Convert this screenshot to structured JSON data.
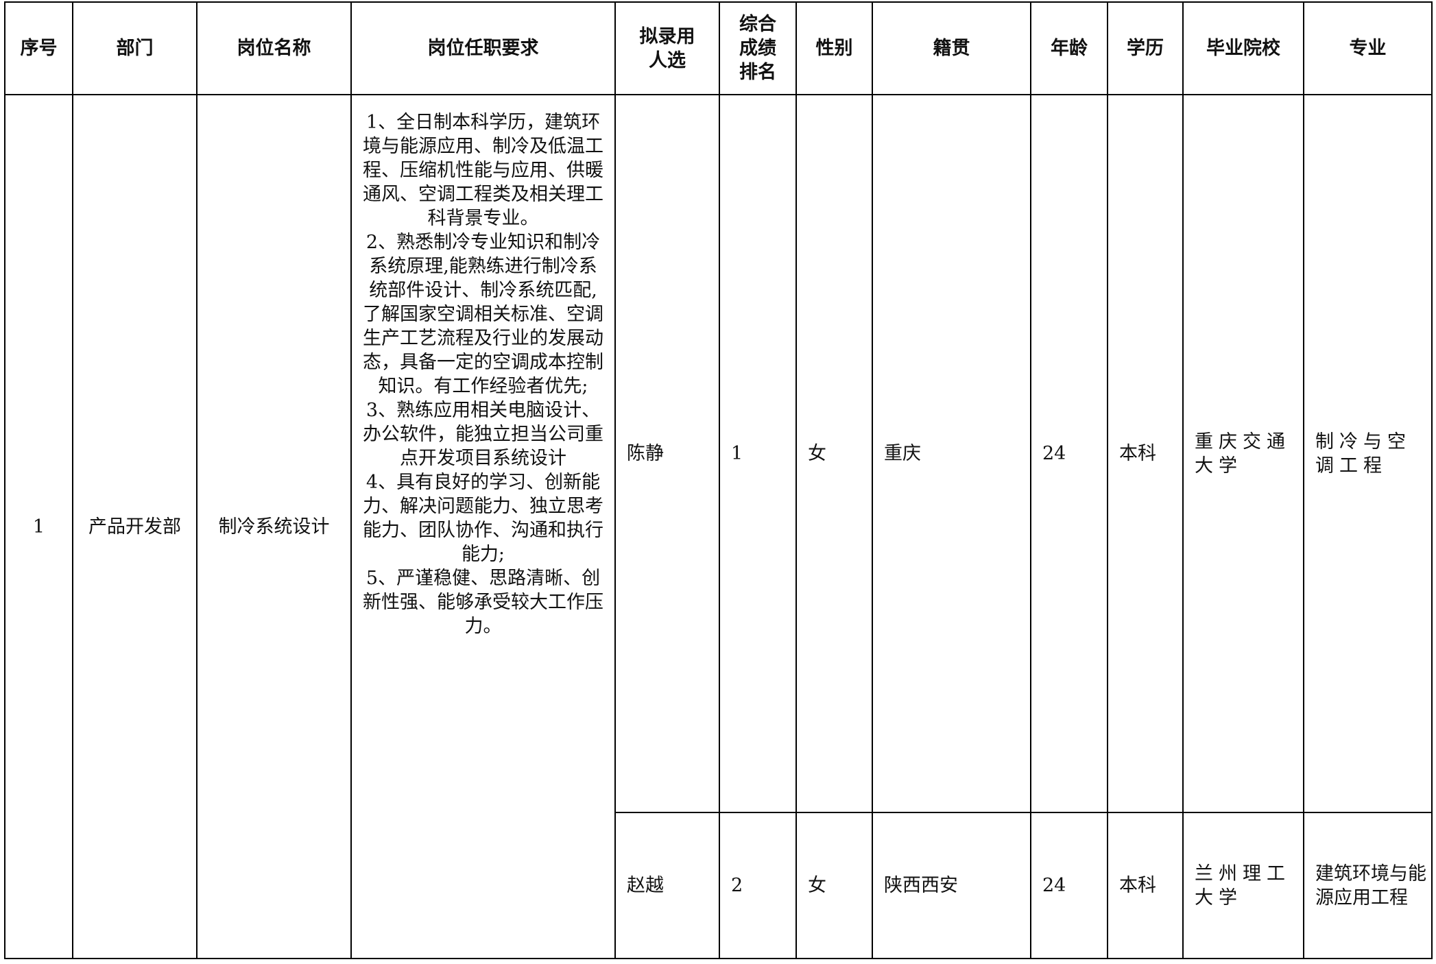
{
  "headers": [
    "序号",
    "部门",
    "岗位名称",
    "岗位任职要求",
    "拟录用人选",
    "综合成绩排名",
    "性别",
    "籍贯",
    "年龄",
    "学历",
    "毕业院校",
    "专业"
  ],
  "header_lines": {
    "candidate": [
      "拟录用",
      "人选"
    ],
    "rank": [
      "综合",
      "成绩",
      "排名"
    ]
  },
  "position": {
    "index": "1",
    "department": "产品开发部",
    "title": "制冷系统设计",
    "requirements": [
      "1、全日制本科学历，建筑环境与能源应用、制冷及低温工程、压缩机性能与应用、供暖通风、空调工程类及相关理工科背景专业。",
      "2、熟悉制冷专业知识和制冷系统原理,能熟练进行制冷系统部件设计、制冷系统匹配,了解国家空调相关标准、空调生产工艺流程及行业的发展动态，具备一定的空调成本控制知识。有工作经验者优先;",
      "3、熟练应用相关电脑设计、办公软件，能独立担当公司重点开发项目系统设计",
      "4、具有良好的学习、创新能力、解决问题能力、独立思考能力、团队协作、沟通和执行能力;",
      "5、严谨稳健、思路清晰、创新性强、能够承受较大工作压力。"
    ]
  },
  "candidates": [
    {
      "name": "陈静",
      "rank": "1",
      "gender": "女",
      "origin": "重庆",
      "age": "24",
      "education": "本科",
      "school": "重庆交通大学",
      "major": "制冷与空调工程"
    },
    {
      "name": "赵越",
      "rank": "2",
      "gender": "女",
      "origin": "陕西西安",
      "age": "24",
      "education": "本科",
      "school": "兰州理工大学",
      "major": "建筑环境与能源应用工程"
    }
  ]
}
